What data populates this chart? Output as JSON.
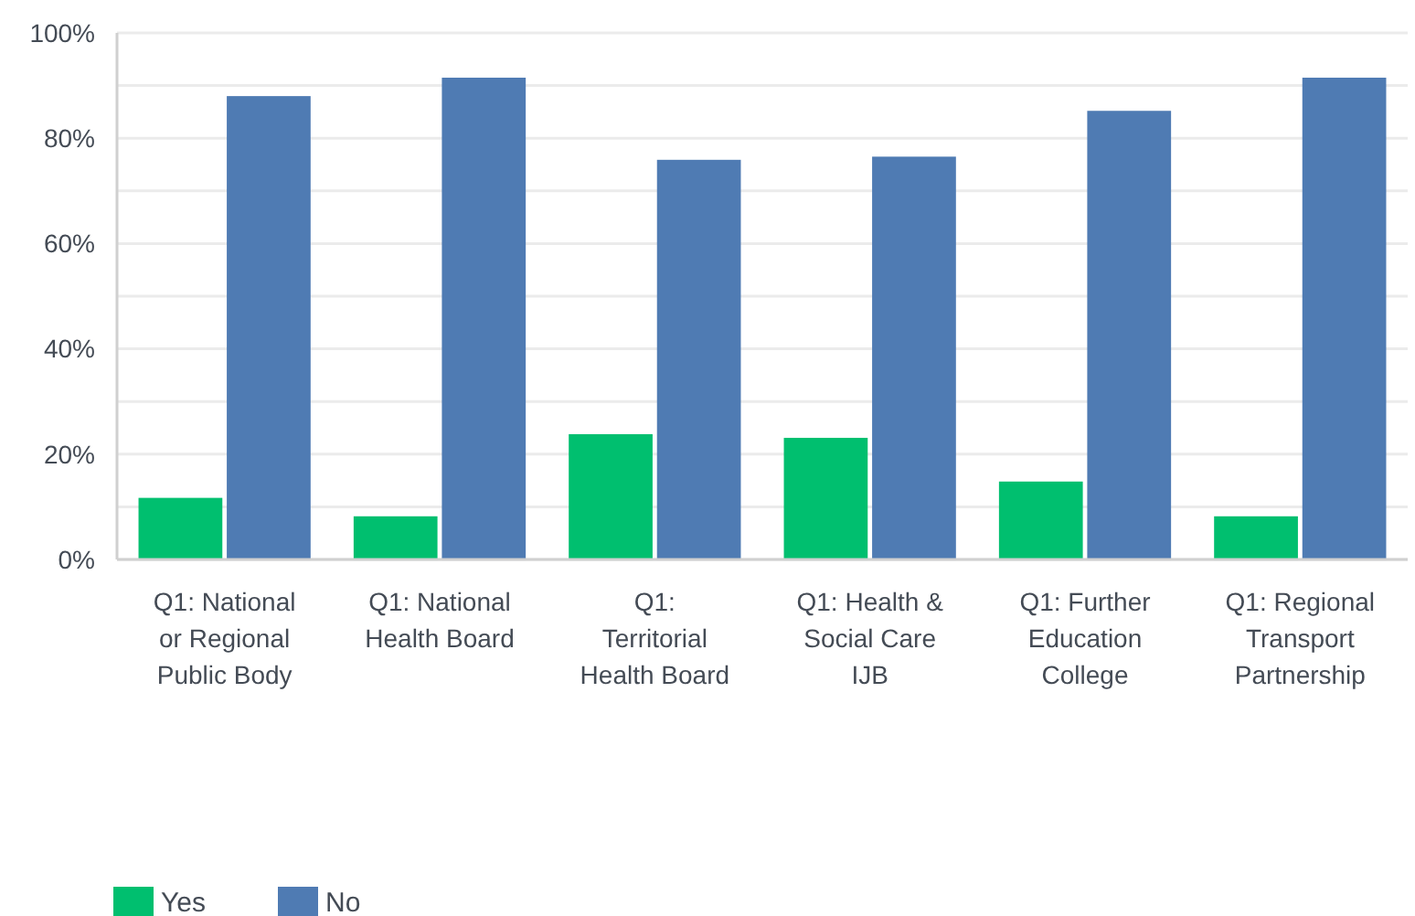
{
  "chart_data": {
    "type": "bar",
    "categories": [
      "Q1: National or Regional Public Body",
      "Q1: National Health Board",
      "Q1: Territorial Health Board",
      "Q1: Health & Social Care IJB",
      "Q1: Further Education College",
      "Q1: Regional Transport Partnership"
    ],
    "series": [
      {
        "name": "Yes",
        "color": "#00bf6f",
        "values": [
          11.7,
          8.2,
          23.8,
          23.1,
          14.8,
          8.2
        ]
      },
      {
        "name": "No",
        "color": "#4f7bb3",
        "values": [
          88,
          91.5,
          75.9,
          76.5,
          85.2,
          91.5
        ]
      }
    ],
    "ylim": [
      0,
      100
    ],
    "yticks": [
      {
        "value": 0,
        "label": "0%"
      },
      {
        "value": 10,
        "label": null
      },
      {
        "value": 20,
        "label": "20%"
      },
      {
        "value": 30,
        "label": null
      },
      {
        "value": 40,
        "label": "40%"
      },
      {
        "value": 50,
        "label": null
      },
      {
        "value": 60,
        "label": "60%"
      },
      {
        "value": 70,
        "label": null
      },
      {
        "value": 80,
        "label": "80%"
      },
      {
        "value": 90,
        "label": null
      },
      {
        "value": 100,
        "label": "100%"
      }
    ],
    "grid": "y",
    "legend": "bottom left"
  }
}
